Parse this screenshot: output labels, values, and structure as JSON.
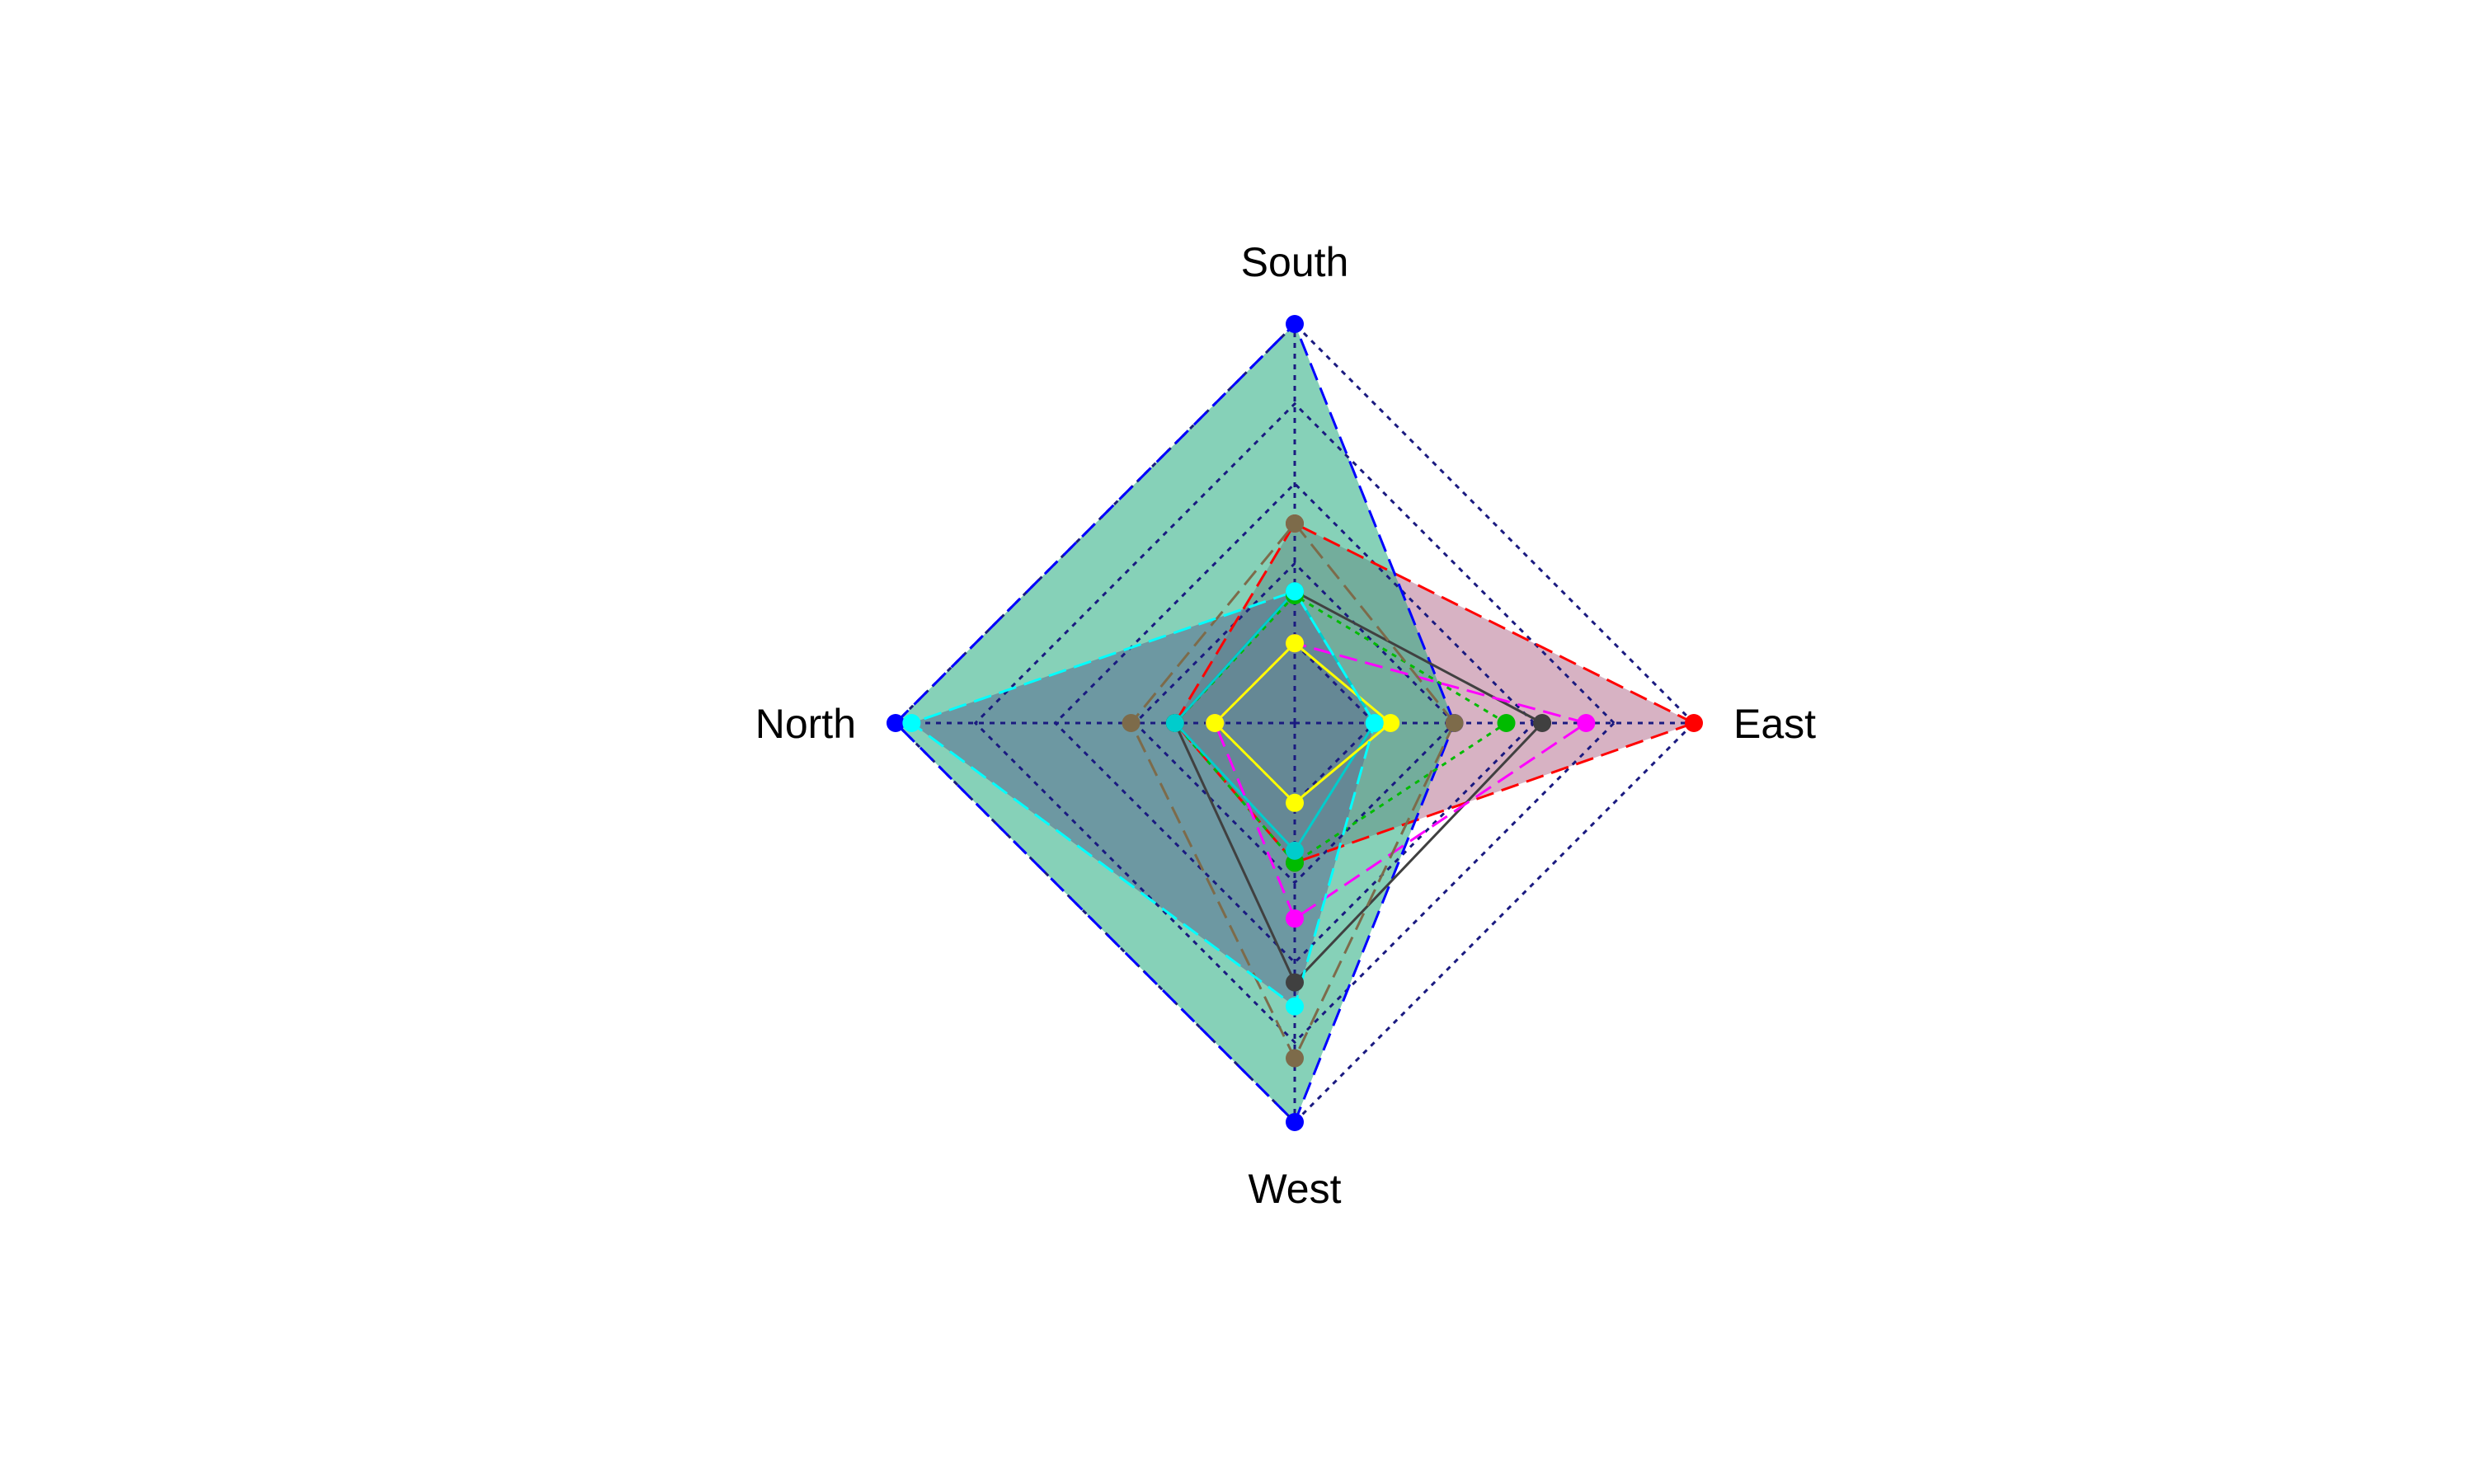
{
  "chart_data": {
    "type": "radar",
    "axes": [
      "East",
      "South",
      "North",
      "West"
    ],
    "rmax": 1.0,
    "grid_levels": 5,
    "series": [
      {
        "values": [
          1.0,
          0.5,
          0.3,
          0.35
        ],
        "stroke": "#ff0000",
        "dash": "dashed",
        "fill": "#8b2252",
        "fill_opacity": 0.35
      },
      {
        "values": [
          0.4,
          1.0,
          1.0,
          1.0
        ],
        "stroke": "#0000ff",
        "dash": "dashed",
        "fill": "#1aa878",
        "fill_opacity": 0.53
      },
      {
        "values": [
          0.53,
          0.32,
          0.3,
          0.35
        ],
        "stroke": "#00bb00",
        "dash": "dotted",
        "fill": null,
        "fill_opacity": 0
      },
      {
        "values": [
          0.62,
          0.33,
          0.3,
          0.65
        ],
        "stroke": "#404040",
        "dash": "solid",
        "fill": null,
        "fill_opacity": 0
      },
      {
        "values": [
          0.2,
          0.33,
          0.3,
          0.32
        ],
        "stroke": "#00cccc",
        "dash": "solid",
        "fill": null,
        "fill_opacity": 0
      },
      {
        "values": [
          0.73,
          0.2,
          0.2,
          0.49
        ],
        "stroke": "#ff00ff",
        "dash": "dashed",
        "fill": null,
        "fill_opacity": 0
      },
      {
        "values": [
          0.24,
          0.2,
          0.2,
          0.2
        ],
        "stroke": "#ffff00",
        "dash": "solid",
        "fill": null,
        "fill_opacity": 0
      },
      {
        "values": [
          0.4,
          0.5,
          0.41,
          0.84
        ],
        "stroke": "#7d6b4a",
        "dash": "dashed",
        "fill": null,
        "fill_opacity": 0
      },
      {
        "values": [
          0.2,
          0.33,
          0.96,
          0.71
        ],
        "stroke": "#00ffff",
        "dash": "dashed",
        "fill": "#5a6a90",
        "fill_opacity": 0.55
      }
    ],
    "title": "",
    "legend": "none",
    "grid": true
  }
}
